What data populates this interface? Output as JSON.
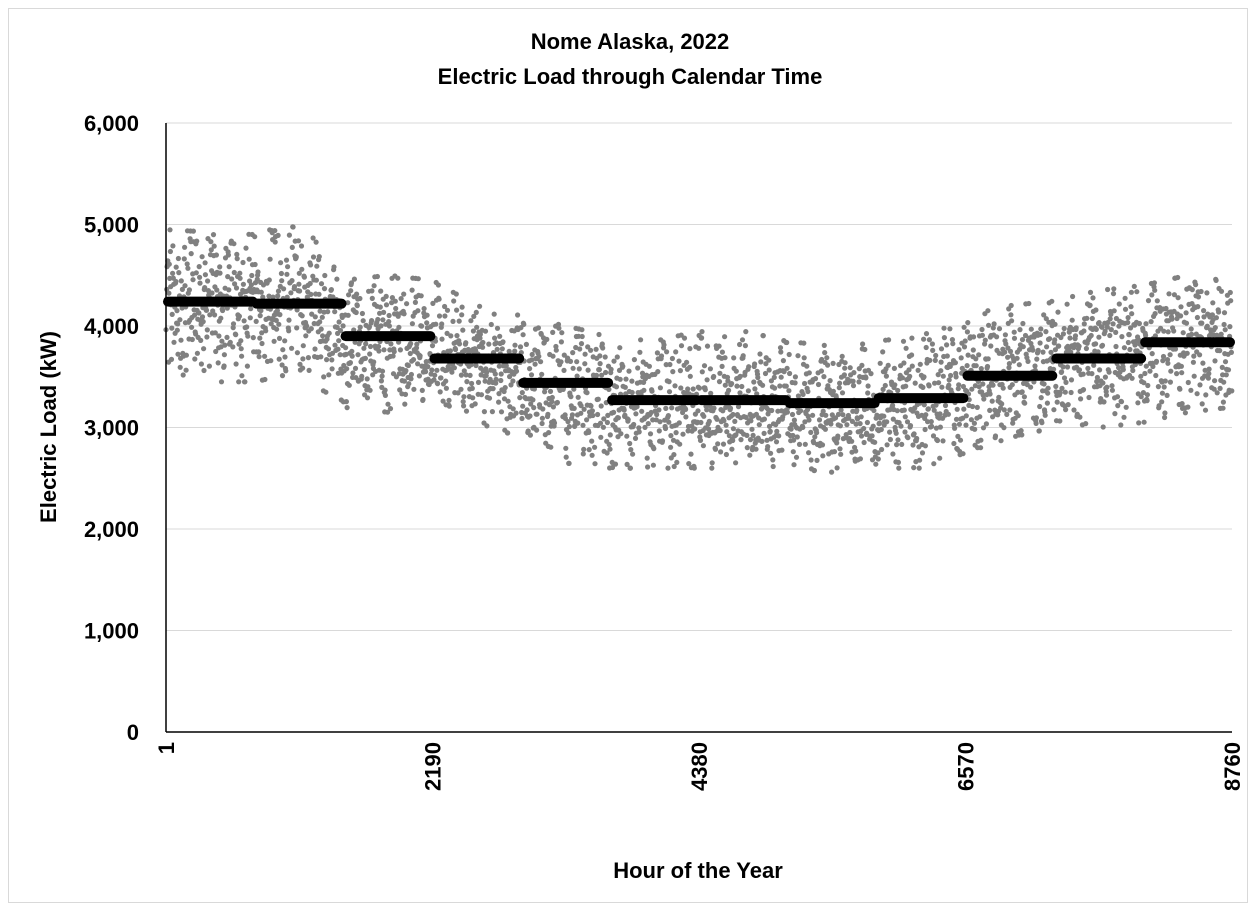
{
  "chart_data": {
    "type": "scatter",
    "title": "Nome Alaska, 2022",
    "subtitle": "Electric Load through Calendar Time",
    "xlabel": "Hour of the Year",
    "ylabel": "Electric Load (kW)",
    "xlim": [
      1,
      8760
    ],
    "ylim": [
      0,
      6000
    ],
    "x_ticks": [
      1,
      2190,
      4380,
      6570,
      8760
    ],
    "x_tick_labels": [
      "1",
      "2190",
      "4380",
      "6570",
      "8760"
    ],
    "y_ticks": [
      0,
      1000,
      2000,
      3000,
      4000,
      5000,
      6000
    ],
    "y_tick_labels": [
      "0",
      "1,000",
      "2,000",
      "3,000",
      "4,000",
      "5,000",
      "6,000"
    ],
    "grid": "horizontal",
    "legend": "none",
    "colors": {
      "hourly": "#808080",
      "monthly_mean": "#000000"
    },
    "hourly_load_envelope": {
      "x": [
        1,
        730,
        1100,
        1460,
        1825,
        2190,
        2555,
        2920,
        3285,
        3650,
        4015,
        4380,
        4745,
        5110,
        5475,
        5840,
        6205,
        6570,
        6935,
        7300,
        7665,
        8030,
        8395,
        8760
      ],
      "mean": [
        4250,
        4250,
        4300,
        3900,
        3850,
        3700,
        3650,
        3450,
        3400,
        3250,
        3200,
        3220,
        3200,
        3200,
        3150,
        3200,
        3250,
        3450,
        3550,
        3650,
        3700,
        3750,
        3850,
        3850
      ],
      "low": [
        3450,
        3450,
        3550,
        3200,
        3150,
        3300,
        3050,
        2900,
        2650,
        2600,
        2600,
        2600,
        2600,
        2600,
        2560,
        2600,
        2600,
        2750,
        2900,
        3000,
        3000,
        3050,
        3150,
        3200
      ],
      "high": [
        4950,
        4900,
        5050,
        4450,
        4500,
        4450,
        4200,
        4100,
        4000,
        3900,
        3850,
        3950,
        3950,
        3850,
        3800,
        3850,
        3900,
        4100,
        4200,
        4250,
        4350,
        4400,
        4500,
        4450
      ]
    },
    "monthly_mean": [
      {
        "start": 1,
        "end": 730,
        "value": 4240
      },
      {
        "start": 730,
        "end": 1460,
        "value": 4220
      },
      {
        "start": 1460,
        "end": 2190,
        "value": 3900
      },
      {
        "start": 2190,
        "end": 2920,
        "value": 3680
      },
      {
        "start": 2920,
        "end": 3650,
        "value": 3440
      },
      {
        "start": 3650,
        "end": 4380,
        "value": 3270
      },
      {
        "start": 4380,
        "end": 5110,
        "value": 3270
      },
      {
        "start": 5110,
        "end": 5840,
        "value": 3240
      },
      {
        "start": 5840,
        "end": 6570,
        "value": 3290
      },
      {
        "start": 6570,
        "end": 7300,
        "value": 3510
      },
      {
        "start": 7300,
        "end": 8030,
        "value": 3680
      },
      {
        "start": 8030,
        "end": 8760,
        "value": 3840
      }
    ]
  }
}
